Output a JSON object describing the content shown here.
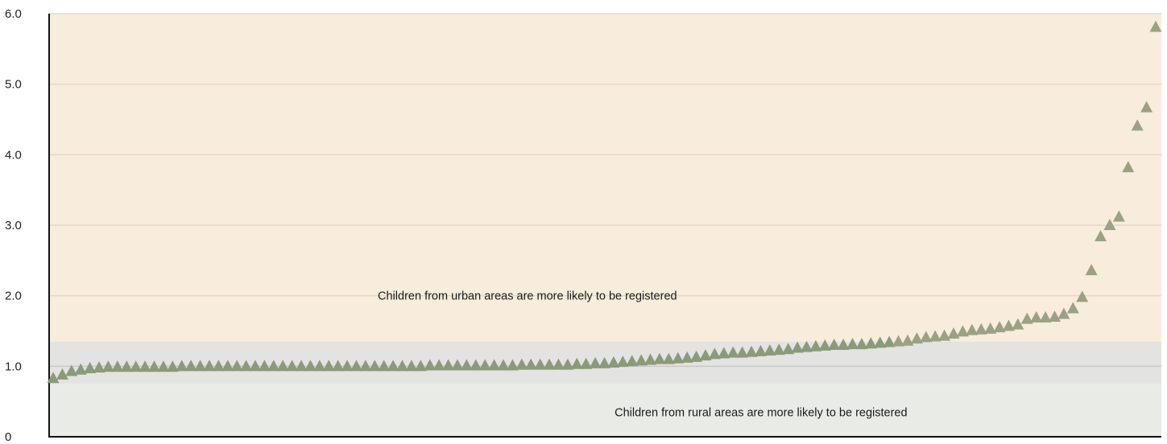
{
  "chart_data": {
    "type": "scatter",
    "marker": "triangle",
    "marker_color": "#9aa283",
    "marker_color_low": "#8a9a7a",
    "ylim": [
      0,
      6
    ],
    "y_ticks": [
      {
        "value": 0,
        "label": "0"
      },
      {
        "value": 1,
        "label": "1.0"
      },
      {
        "value": 2,
        "label": "2.0"
      },
      {
        "value": 3,
        "label": "3.0"
      },
      {
        "value": 4,
        "label": "4.0"
      },
      {
        "value": 5,
        "label": "5.0"
      },
      {
        "value": 6,
        "label": "6.0"
      }
    ],
    "grid": "horizontal",
    "grid_color": "#e6d8c6",
    "reference_line": {
      "value": 1,
      "color": "#c9c9c9"
    },
    "bands": [
      {
        "from": 1.35,
        "to": 6.0,
        "color": "#f8ecdd",
        "name": "urban"
      },
      {
        "from": 0.75,
        "to": 1.35,
        "color": "#e3e3e1",
        "name": "parity"
      },
      {
        "from": 0.0,
        "to": 0.75,
        "color": "#e9ebe6",
        "name": "rural"
      }
    ],
    "annotations": [
      {
        "text": "Children from urban areas are more likely to be registered",
        "x_frac": 0.43,
        "y": 2.0
      },
      {
        "text": "Children from rural areas are more likely to be registered",
        "x_frac": 0.64,
        "y": 0.35
      }
    ],
    "values": [
      0.83,
      0.88,
      0.93,
      0.95,
      0.97,
      0.98,
      0.99,
      0.99,
      0.99,
      0.99,
      0.99,
      0.99,
      0.99,
      0.99,
      1.0,
      1.0,
      1.0,
      1.0,
      1.0,
      1.0,
      1.0,
      1.0,
      1.0,
      1.0,
      1.0,
      1.0,
      1.0,
      1.0,
      1.0,
      1.0,
      1.0,
      1.0,
      1.0,
      1.0,
      1.0,
      1.0,
      1.0,
      1.0,
      1.0,
      1.0,
      1.0,
      1.01,
      1.01,
      1.01,
      1.01,
      1.01,
      1.01,
      1.01,
      1.01,
      1.01,
      1.01,
      1.02,
      1.02,
      1.02,
      1.02,
      1.02,
      1.02,
      1.03,
      1.03,
      1.04,
      1.04,
      1.05,
      1.06,
      1.07,
      1.08,
      1.09,
      1.1,
      1.1,
      1.11,
      1.12,
      1.13,
      1.15,
      1.17,
      1.18,
      1.19,
      1.19,
      1.2,
      1.21,
      1.22,
      1.23,
      1.24,
      1.26,
      1.27,
      1.28,
      1.29,
      1.3,
      1.3,
      1.31,
      1.31,
      1.32,
      1.33,
      1.34,
      1.35,
      1.36,
      1.39,
      1.41,
      1.42,
      1.43,
      1.46,
      1.49,
      1.51,
      1.52,
      1.53,
      1.55,
      1.57,
      1.59,
      1.67,
      1.69,
      1.69,
      1.7,
      1.74,
      1.82,
      1.98,
      2.36,
      2.84,
      3.0,
      3.12,
      3.82,
      4.41,
      4.67,
      5.81
    ]
  }
}
